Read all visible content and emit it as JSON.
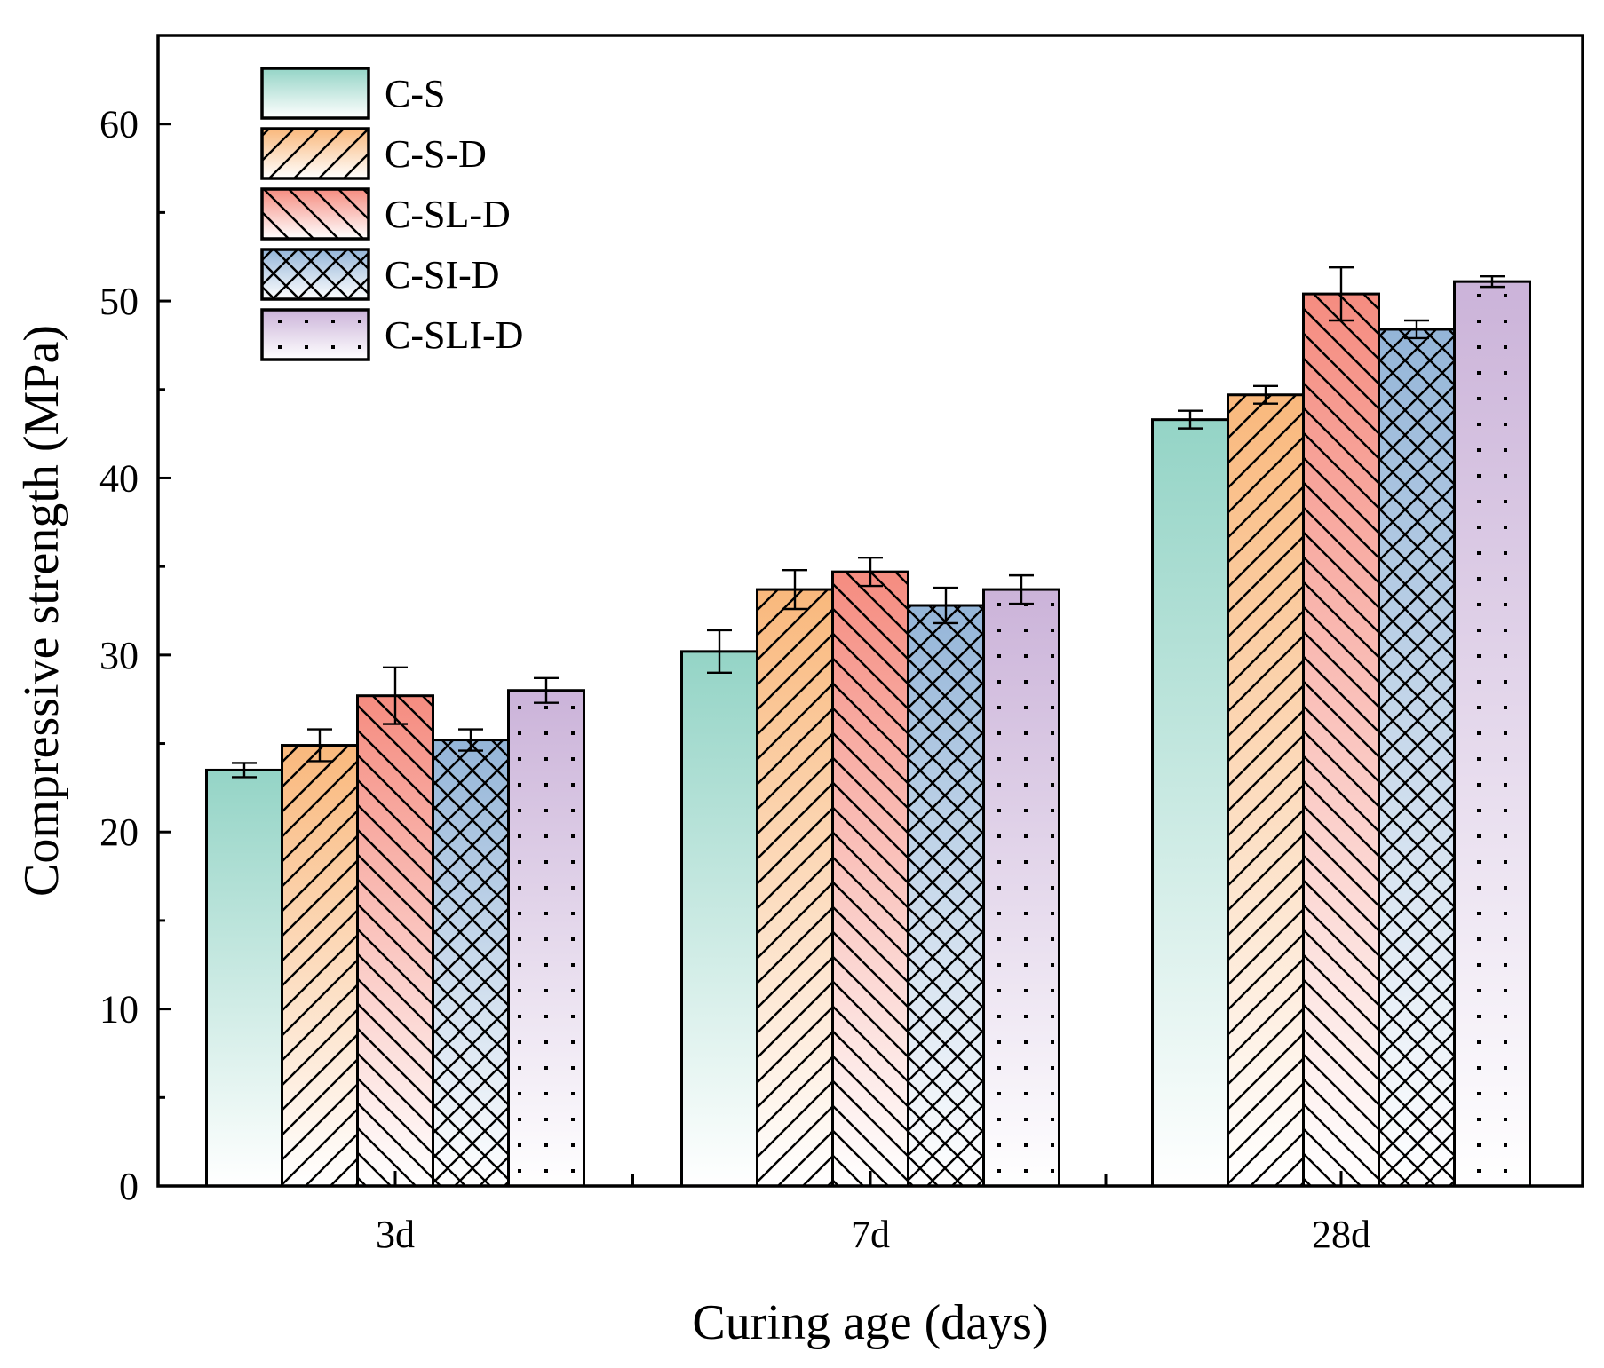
{
  "chart_data": {
    "type": "bar",
    "title": "",
    "xlabel": "Curing age (days)",
    "ylabel": "Compressive strength (MPa)",
    "categories": [
      "3d",
      "7d",
      "28d"
    ],
    "ylim": [
      0,
      65
    ],
    "yticks": [
      0,
      10,
      20,
      30,
      40,
      50,
      60
    ],
    "grid": false,
    "legend_position": "top-left",
    "series": [
      {
        "name": "C-S",
        "values": [
          23.5,
          30.2,
          43.3
        ],
        "errors": [
          0.4,
          1.2,
          0.5
        ],
        "color_top": "#94d4c6",
        "color_bottom": "#ffffff",
        "pattern": "none"
      },
      {
        "name": "C-S-D",
        "values": [
          24.9,
          33.7,
          44.7
        ],
        "errors": [
          0.9,
          1.1,
          0.5
        ],
        "color_top": "#f9b87c",
        "color_bottom": "#ffffff",
        "pattern": "forward-diagonal"
      },
      {
        "name": "C-SL-D",
        "values": [
          27.7,
          34.7,
          50.4
        ],
        "errors": [
          1.6,
          0.8,
          1.5
        ],
        "color_top": "#f58c80",
        "color_bottom": "#ffffff",
        "pattern": "back-diagonal"
      },
      {
        "name": "C-SI-D",
        "values": [
          25.2,
          32.8,
          48.4
        ],
        "errors": [
          0.6,
          1.0,
          0.5
        ],
        "color_top": "#94b5d8",
        "color_bottom": "#ffffff",
        "pattern": "crosshatch"
      },
      {
        "name": "C-SLI-D",
        "values": [
          28.0,
          33.7,
          51.1
        ],
        "errors": [
          0.7,
          0.8,
          0.3
        ],
        "color_top": "#cbb3d9",
        "color_bottom": "#ffffff",
        "pattern": "dots"
      }
    ]
  }
}
